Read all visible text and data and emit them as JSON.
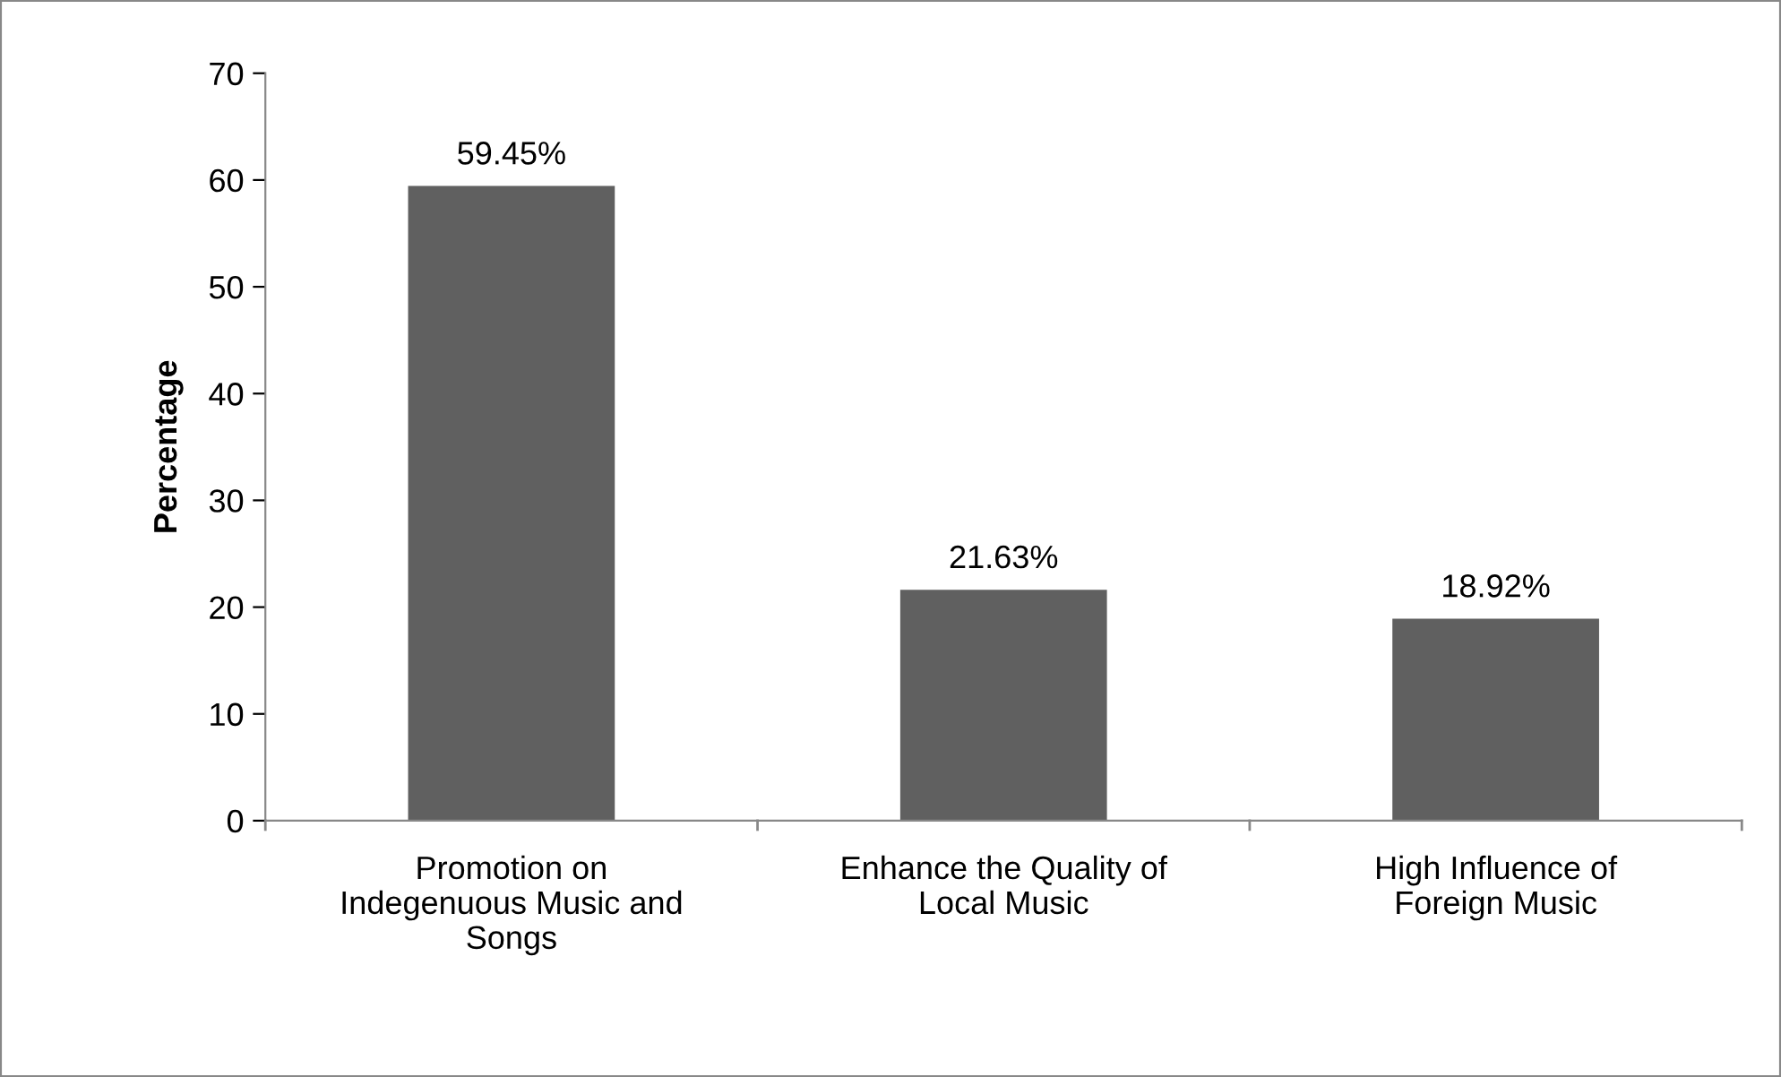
{
  "chart_data": {
    "type": "bar",
    "categories": [
      "Promotion on Indegenuous Music and Songs",
      "Enhance the Quality of Local Music",
      "High Influence of Foreign Music"
    ],
    "values": [
      59.45,
      21.63,
      18.92
    ],
    "value_labels": [
      "59.45%",
      "21.63%",
      "18.92%"
    ],
    "color": "#606060",
    "ylabel": "Percentage",
    "ylim": [
      0,
      70
    ],
    "yticks": [
      0,
      10,
      20,
      30,
      40,
      50,
      60,
      70
    ],
    "grid": false,
    "legend": false
  }
}
